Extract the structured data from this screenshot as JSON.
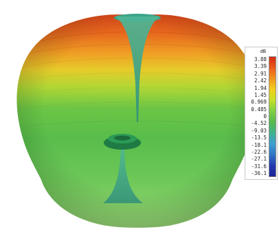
{
  "chart_data": {
    "type": "3d-radiation-pattern",
    "title": "",
    "colorbar": {
      "unit": "dB",
      "ticks": [
        "3.88",
        "3.39",
        "2.91",
        "2.42",
        "1.94",
        "1.45",
        "0.969",
        "0.485",
        "0",
        "-4.52",
        "-9.03",
        "-13.5",
        "-18.1",
        "-22.6",
        "-27.1",
        "-31.6",
        "-36.1"
      ],
      "max": 3.88,
      "min": -36.1,
      "colormap": [
        "#d52a12",
        "#ea5a1b",
        "#f0941f",
        "#f2cf1e",
        "#c6e028",
        "#82cf43",
        "#53b94f",
        "#3fb090",
        "#3e9ed4",
        "#2f73c4",
        "#2438b0",
        "#1c2396"
      ],
      "placement": "right"
    },
    "surface_colors": {
      "top_lobe_peak": "#d9531c",
      "side_lobe_mid": "#f0c228",
      "body": "#63c14c",
      "body_lower": "#8bd46a",
      "null_funnel": "#3fb39b",
      "null_ring": "#1f7a44"
    }
  }
}
